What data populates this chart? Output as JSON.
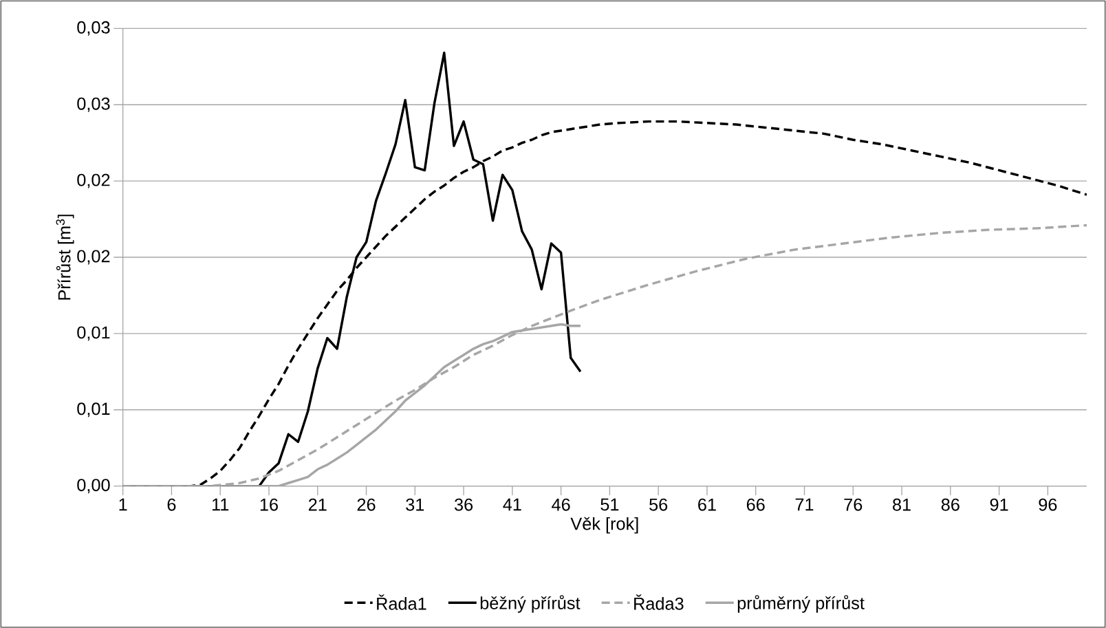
{
  "chart_data": {
    "type": "line",
    "xlabel": "Věk [rok]",
    "ylabel": "Přírůst [m$^{3}$]",
    "xlim": [
      1,
      100
    ],
    "xticks": [
      1,
      6,
      11,
      16,
      21,
      26,
      31,
      36,
      41,
      46,
      51,
      56,
      61,
      66,
      71,
      76,
      81,
      86,
      91,
      96
    ],
    "ylim": [
      0,
      0.03
    ],
    "yticks": [
      {
        "value": 0,
        "label": "0,00"
      },
      {
        "value": 0.005,
        "label": "0,01"
      },
      {
        "value": 0.01,
        "label": "0,01"
      },
      {
        "value": 0.015,
        "label": "0,02"
      },
      {
        "value": 0.02,
        "label": "0,02"
      },
      {
        "value": 0.025,
        "label": "0,03"
      },
      {
        "value": 0.03,
        "label": "0,03"
      }
    ],
    "grid": "y",
    "legend": "bottom",
    "series": [
      {
        "name": "Řada1",
        "color": "#000000",
        "line_style": "dashed",
        "x": [
          1,
          8,
          9,
          10,
          11,
          12,
          13,
          14,
          15,
          16,
          17,
          18,
          19,
          20,
          21,
          22,
          23,
          24,
          25,
          26,
          27,
          28,
          29,
          30,
          31,
          32,
          33,
          34,
          35,
          36,
          37,
          38,
          39,
          40,
          41,
          42,
          43,
          44,
          45,
          46,
          47,
          48,
          50,
          52,
          55,
          58,
          61,
          64,
          67,
          70,
          73,
          76,
          79,
          82,
          85,
          88,
          91,
          94,
          97,
          100
        ],
        "values": [
          0,
          0,
          0.0001,
          0.0005,
          0.001,
          0.0017,
          0.0025,
          0.0036,
          0.0046,
          0.0057,
          0.0067,
          0.0079,
          0.009,
          0.01,
          0.011,
          0.0119,
          0.0128,
          0.0135,
          0.0143,
          0.015,
          0.0157,
          0.0164,
          0.017,
          0.0176,
          0.0182,
          0.0188,
          0.0193,
          0.0197,
          0.0202,
          0.0206,
          0.0209,
          0.0213,
          0.0216,
          0.022,
          0.0222,
          0.0225,
          0.0227,
          0.023,
          0.0232,
          0.0233,
          0.0234,
          0.0235,
          0.0237,
          0.0238,
          0.0239,
          0.0239,
          0.0238,
          0.0237,
          0.0235,
          0.0233,
          0.0231,
          0.0227,
          0.0224,
          0.022,
          0.0216,
          0.0212,
          0.0207,
          0.0202,
          0.0197,
          0.0191
        ]
      },
      {
        "name": "běžný přírůst",
        "color": "#000000",
        "line_style": "solid",
        "x": [
          1,
          15,
          16,
          17,
          18,
          19,
          20,
          21,
          22,
          23,
          24,
          25,
          26,
          27,
          28,
          29,
          30,
          31,
          32,
          33,
          34,
          35,
          36,
          37,
          38,
          39,
          40,
          41,
          42,
          43,
          44,
          45,
          46,
          47,
          48
        ],
        "values": [
          0,
          0,
          0.0009,
          0.0015,
          0.0034,
          0.0029,
          0.0049,
          0.0077,
          0.0097,
          0.009,
          0.0124,
          0.015,
          0.016,
          0.0187,
          0.0205,
          0.0224,
          0.0253,
          0.0209,
          0.0207,
          0.0251,
          0.0284,
          0.0223,
          0.0239,
          0.0214,
          0.0211,
          0.0174,
          0.0204,
          0.0194,
          0.0167,
          0.0155,
          0.0129,
          0.0159,
          0.0153,
          0.0084,
          0.0075
        ]
      },
      {
        "name": "Řada3",
        "color": "#a6a6a6",
        "line_style": "dashed",
        "x": [
          1,
          10,
          13,
          15,
          17,
          19,
          21,
          23,
          25,
          27,
          29,
          31,
          33,
          35,
          37,
          39,
          41,
          43,
          45,
          47,
          50,
          55,
          60,
          65,
          70,
          75,
          80,
          85,
          90,
          95,
          100
        ],
        "values": [
          0,
          0,
          0.0002,
          0.0005,
          0.001,
          0.0017,
          0.0024,
          0.0032,
          0.004,
          0.0048,
          0.0056,
          0.0063,
          0.0071,
          0.0078,
          0.0086,
          0.0092,
          0.0099,
          0.0105,
          0.011,
          0.0115,
          0.0122,
          0.0132,
          0.0141,
          0.0149,
          0.0155,
          0.0159,
          0.0163,
          0.0166,
          0.0168,
          0.0169,
          0.0171
        ]
      },
      {
        "name": "průměrný přírůst",
        "color": "#a6a6a6",
        "line_style": "solid",
        "x": [
          1,
          17,
          18,
          19,
          20,
          21,
          22,
          23,
          24,
          25,
          26,
          27,
          28,
          29,
          30,
          31,
          32,
          33,
          34,
          35,
          36,
          37,
          38,
          39,
          40,
          41,
          42,
          43,
          44,
          45,
          46,
          47,
          48
        ],
        "values": [
          0,
          0,
          0.0002,
          0.0004,
          0.0006,
          0.0011,
          0.0014,
          0.0018,
          0.0022,
          0.0027,
          0.0032,
          0.0037,
          0.0043,
          0.0049,
          0.0056,
          0.0061,
          0.0066,
          0.0072,
          0.0078,
          0.0082,
          0.0086,
          0.009,
          0.0093,
          0.0095,
          0.0098,
          0.0101,
          0.0102,
          0.0103,
          0.0104,
          0.0105,
          0.0106,
          0.0105,
          0.0105
        ]
      }
    ]
  }
}
